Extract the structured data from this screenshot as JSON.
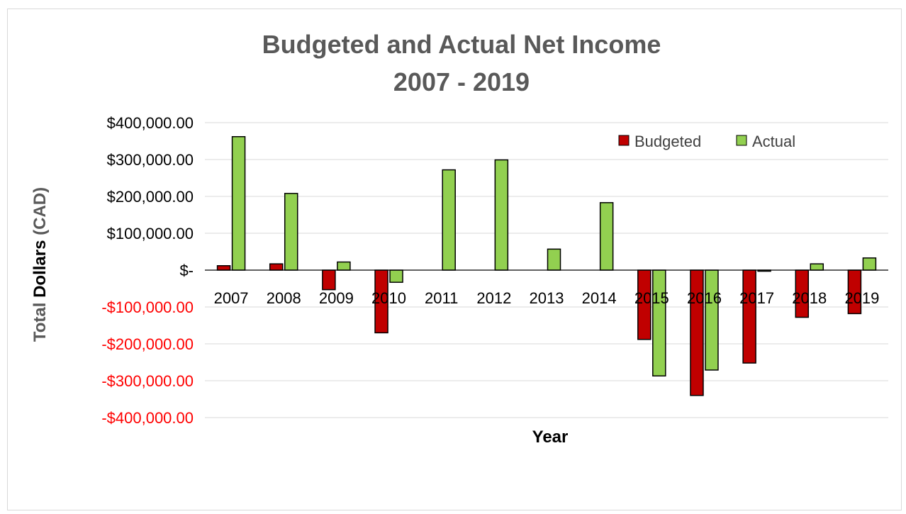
{
  "chart_data": {
    "type": "bar",
    "title": [
      "Budgeted and Actual Net Income",
      "2007 - 2019"
    ],
    "xlabel": "Year",
    "ylabel": {
      "prefix": "Total",
      "bold": "Dollars",
      "suffix": "(CAD)"
    },
    "ylim": [
      -400000,
      400000
    ],
    "yticks": [
      400000,
      300000,
      200000,
      100000,
      0,
      -100000,
      -200000,
      -300000,
      -400000
    ],
    "ytick_labels": [
      "$400,000.00",
      "$300,000.00",
      "$200,000.00",
      "$100,000.00",
      "$-",
      "-$100,000.00",
      "-$200,000.00",
      "-$300,000.00",
      "-$400,000.00"
    ],
    "negative_tick_color": "#ff0000",
    "grid": true,
    "legend_position": "top-right",
    "categories": [
      "2007",
      "2008",
      "2009",
      "2010",
      "2011",
      "2012",
      "2013",
      "2014",
      "2015",
      "2016",
      "2017",
      "2018",
      "2019"
    ],
    "series": [
      {
        "name": "Budgeted",
        "color": "#c00000",
        "values": [
          12000,
          17000,
          -53000,
          -170000,
          0,
          0,
          0,
          0,
          -188000,
          -340000,
          -252000,
          -128000,
          -118000
        ]
      },
      {
        "name": "Actual",
        "color": "#92d050",
        "values": [
          362000,
          208000,
          22000,
          -33000,
          272000,
          299000,
          57000,
          183000,
          -287000,
          -271000,
          -3000,
          17000,
          33000
        ]
      }
    ]
  }
}
